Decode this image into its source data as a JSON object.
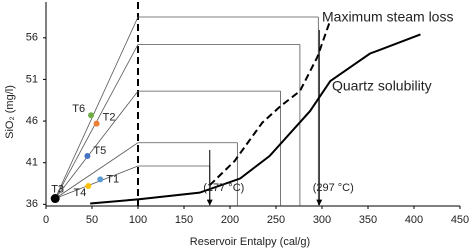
{
  "chart_data": {
    "type": "mixing",
    "x_label": "Reservoir Entalpy (cal/g)",
    "y_label": "SiO₂ (mg/l)",
    "xlim": [
      0,
      450
    ],
    "ylim": [
      35.8,
      60.3
    ],
    "xticks": [
      0,
      50,
      100,
      150,
      200,
      250,
      300,
      350,
      400,
      450
    ],
    "yticks": [
      36,
      41,
      46,
      51,
      56
    ],
    "series": [
      {
        "name": "Quartz solubility",
        "color": "#000000",
        "dash": false,
        "x": [
          48,
          100,
          167,
          211,
          243,
          287,
          309,
          352,
          407
        ],
        "values": [
          36.1,
          36.6,
          37.4,
          39.1,
          41.8,
          47.2,
          50.8,
          54.1,
          56.4
        ]
      },
      {
        "name": "Maximum steam loss",
        "color": "#000000",
        "dash": true,
        "x": [
          178,
          205,
          235,
          255,
          276,
          295,
          309
        ],
        "values": [
          38.3,
          41.2,
          45.8,
          47.8,
          49.6,
          53.7,
          58.1
        ]
      }
    ],
    "mixing_x": 100,
    "mixing": [
      {
        "y": 40.6,
        "x_end": 178
      },
      {
        "y": 43.4,
        "x_end": 208
      },
      {
        "y": 49.6,
        "x_end": 255
      },
      {
        "y": 55.2,
        "x_end": 276
      },
      {
        "y": 58.5,
        "x_end": 296
      }
    ],
    "origin": {
      "x": 10,
      "y": 36.7
    },
    "points": [
      {
        "label": "T1",
        "color": "#5b9bd5",
        "x": 59,
        "y": 39
      },
      {
        "label": "T2",
        "color": "#ed7d31",
        "x": 55,
        "y": 45.7
      },
      {
        "label": "T3",
        "color": "#000000",
        "x": 10,
        "y": 36.7
      },
      {
        "label": "T4",
        "color": "#ffc000",
        "x": 46,
        "y": 38.2
      },
      {
        "label": "T5",
        "color": "#4472c4",
        "x": 45,
        "y": 41.8
      },
      {
        "label": "T6",
        "color": "#70ad47",
        "x": 49,
        "y": 46.7
      }
    ],
    "arrows": [
      {
        "x": 178,
        "label": "(177 °C)"
      },
      {
        "x": 297,
        "label": "(297 °C)"
      }
    ]
  }
}
